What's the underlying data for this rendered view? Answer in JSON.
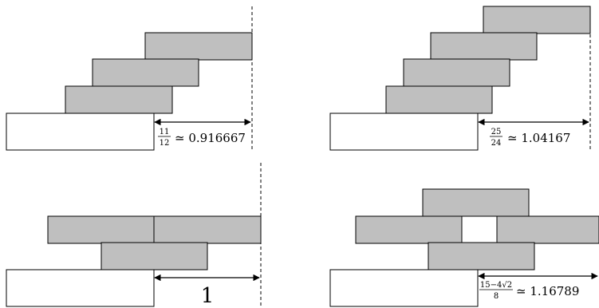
{
  "panels": [
    {
      "fraction": {
        "num": "11",
        "den": "12"
      },
      "value_text": "≃ 0.916667"
    },
    {
      "fraction": {
        "num": "25",
        "den": "24"
      },
      "value_text": "≃ 1.04167"
    },
    {
      "plain_label": "1"
    },
    {
      "fraction": {
        "num": "15−4√2",
        "den": "8"
      },
      "value_text": "≃ 1.16789"
    }
  ],
  "colors": {
    "gray_block": "#bfbfbf",
    "white_block": "#ffffff",
    "stroke": "#000000"
  }
}
